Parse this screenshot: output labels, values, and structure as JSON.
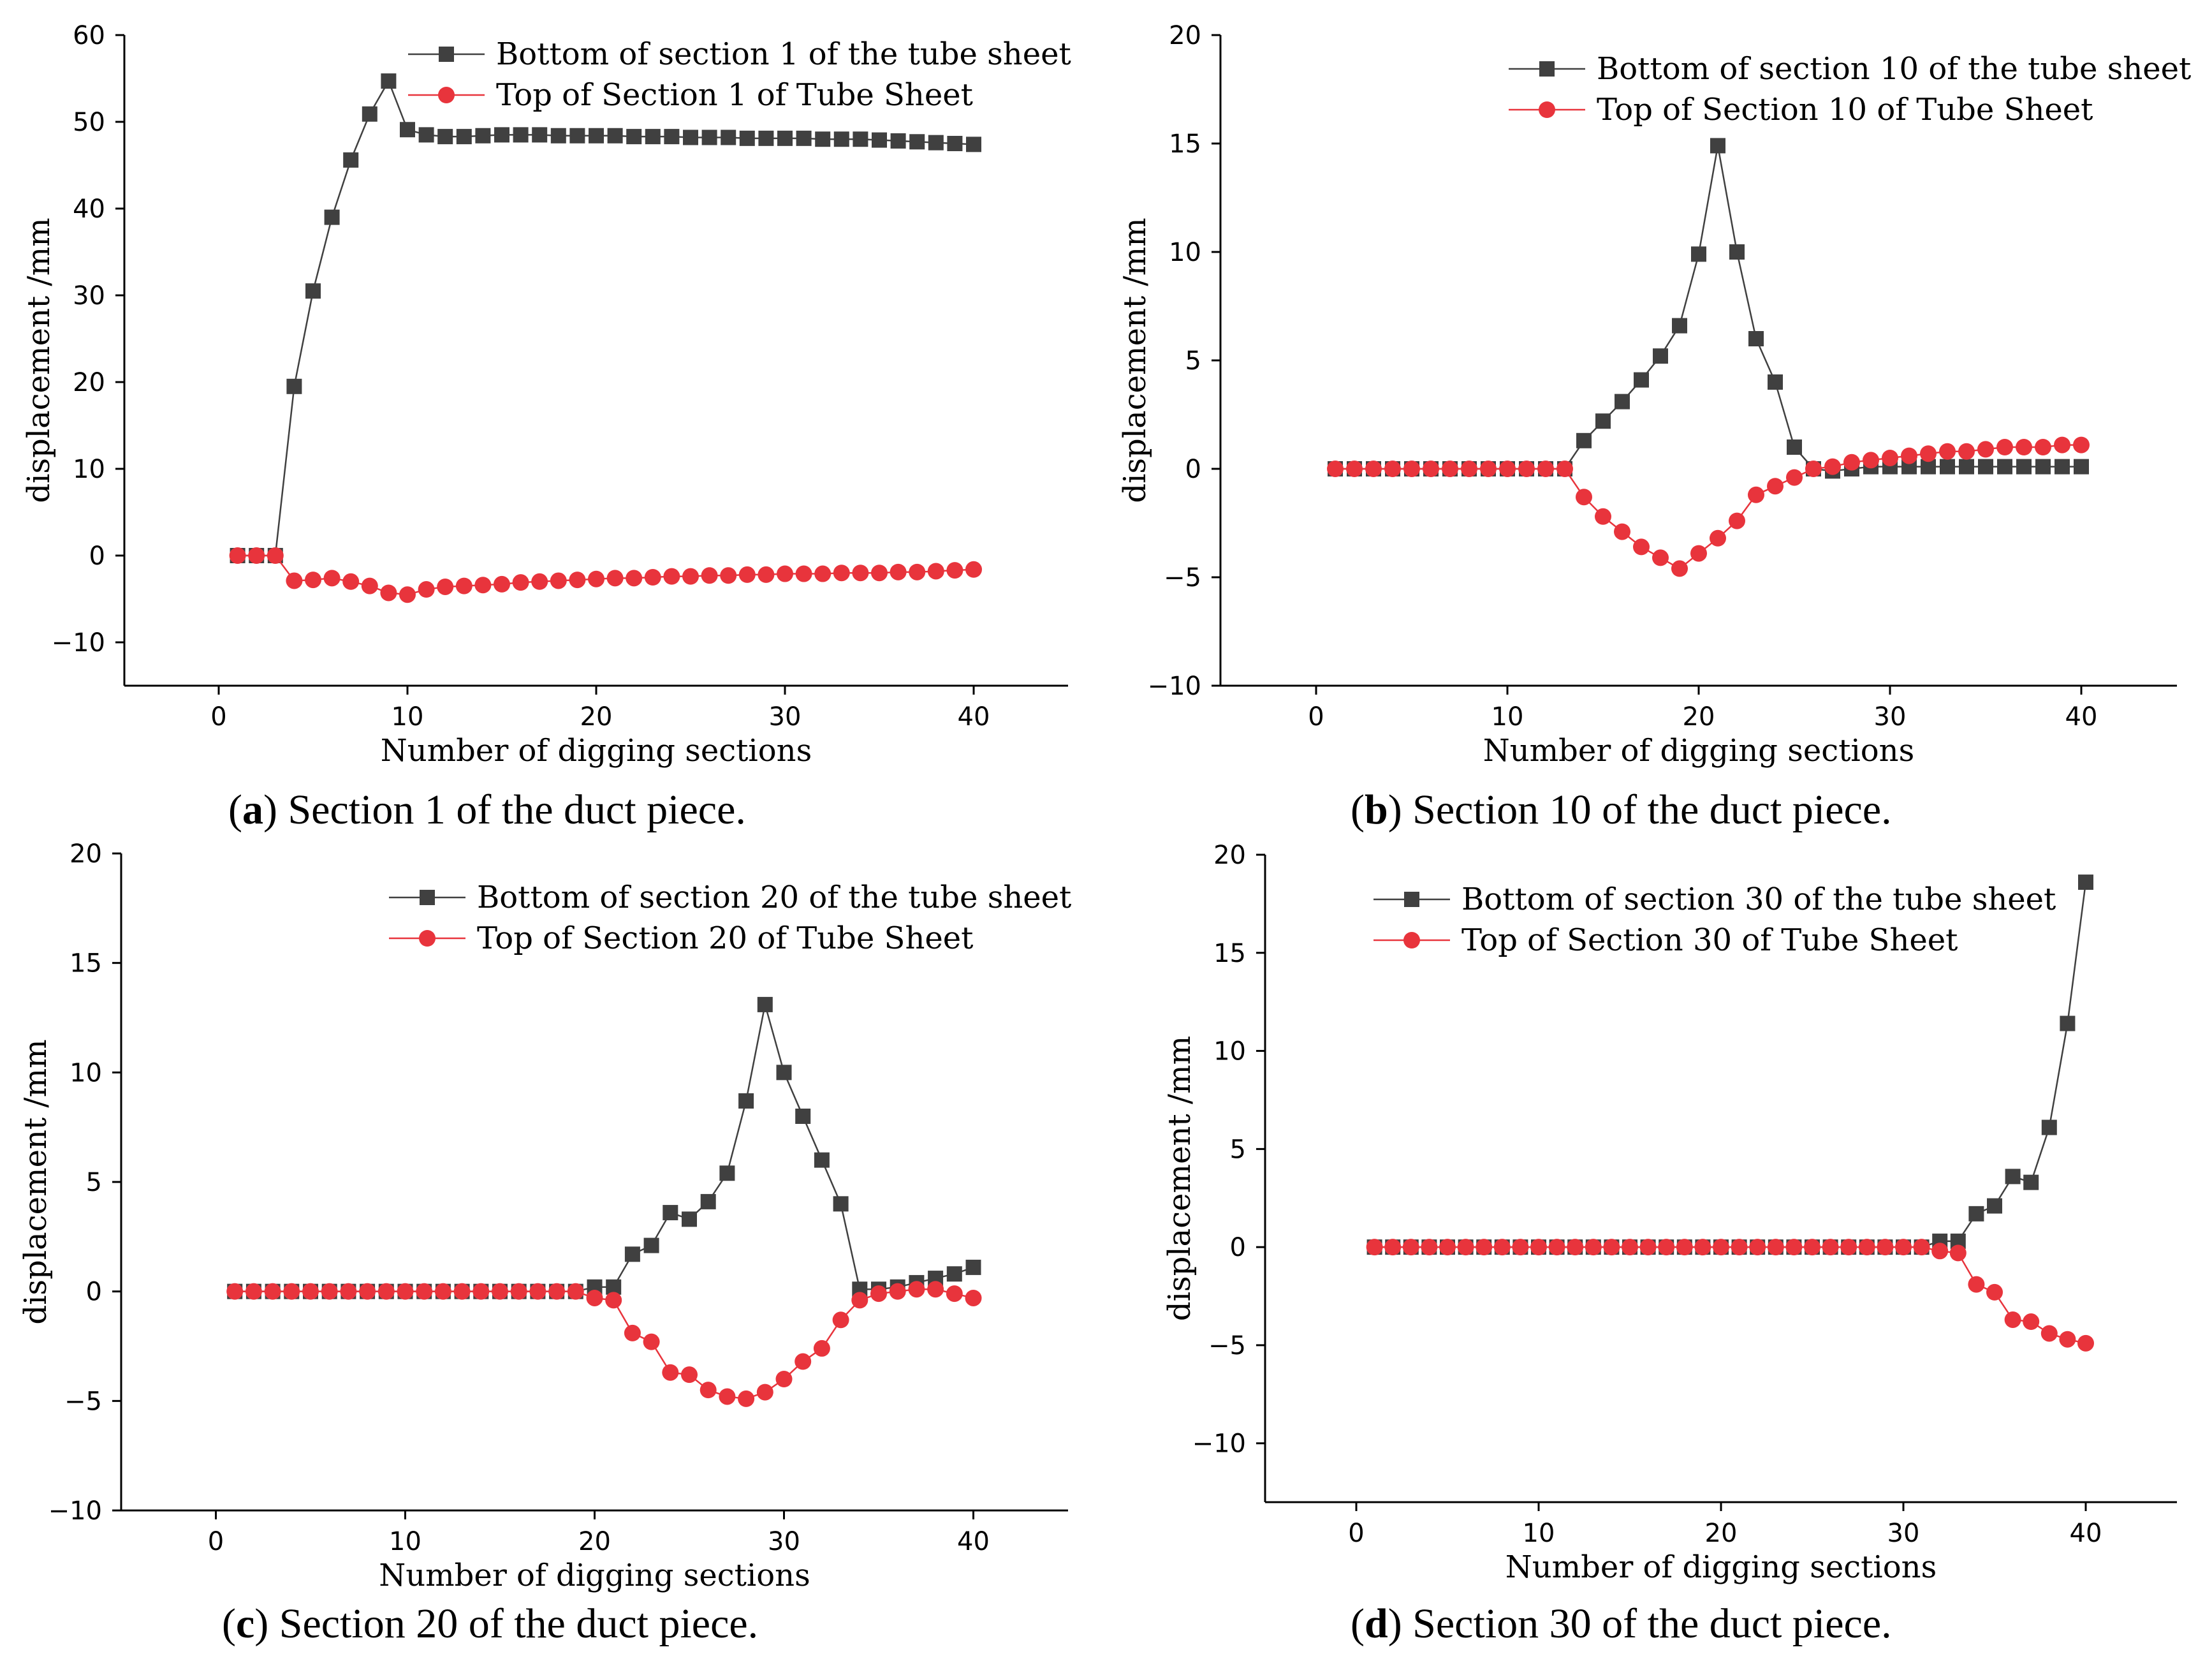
{
  "chart_data": [
    {
      "id": "a",
      "type": "line",
      "xlabel": "Number of digging sections",
      "ylabel": "displacement /mm",
      "xlim": [
        -5,
        45
      ],
      "ylim": [
        -15,
        60
      ],
      "xticks": [
        0,
        10,
        20,
        30,
        40
      ],
      "yticks": [
        -10,
        0,
        10,
        20,
        30,
        40,
        50,
        60
      ],
      "grid": false,
      "legend_position": "top-right",
      "caption": {
        "prefix": "(",
        "letter": "a",
        "suffix": ") Section 1 of the duct piece."
      },
      "x": [
        1,
        2,
        3,
        4,
        5,
        6,
        7,
        8,
        9,
        10,
        11,
        12,
        13,
        14,
        15,
        16,
        17,
        18,
        19,
        20,
        21,
        22,
        23,
        24,
        25,
        26,
        27,
        28,
        29,
        30,
        31,
        32,
        33,
        34,
        35,
        36,
        37,
        38,
        39,
        40
      ],
      "series": [
        {
          "name": "Bottom of section 1 of the tube sheet",
          "color": "#404040",
          "marker": "square",
          "values": [
            0,
            0,
            0,
            19.5,
            30.5,
            39,
            45.6,
            50.9,
            54.7,
            49.1,
            48.5,
            48.3,
            48.3,
            48.4,
            48.5,
            48.5,
            48.5,
            48.4,
            48.4,
            48.4,
            48.4,
            48.3,
            48.3,
            48.3,
            48.2,
            48.2,
            48.2,
            48.1,
            48.1,
            48.1,
            48.1,
            48.0,
            48.0,
            48.0,
            47.9,
            47.8,
            47.7,
            47.6,
            47.5,
            47.4
          ]
        },
        {
          "name": "Top of Section 1 of Tube Sheet",
          "color": "#e8343c",
          "marker": "circle",
          "values": [
            0,
            0,
            0,
            -2.9,
            -2.8,
            -2.6,
            -3.0,
            -3.5,
            -4.3,
            -4.5,
            -3.9,
            -3.6,
            -3.5,
            -3.4,
            -3.3,
            -3.1,
            -3.0,
            -2.9,
            -2.8,
            -2.7,
            -2.6,
            -2.6,
            -2.5,
            -2.4,
            -2.4,
            -2.3,
            -2.3,
            -2.2,
            -2.2,
            -2.1,
            -2.1,
            -2.1,
            -2.0,
            -2.0,
            -2.0,
            -1.9,
            -1.9,
            -1.8,
            -1.7,
            -1.6
          ]
        }
      ]
    },
    {
      "id": "b",
      "type": "line",
      "xlabel": "Number of digging sections",
      "ylabel": "displacement /mm",
      "xlim": [
        -5,
        45
      ],
      "ylim": [
        -10,
        20
      ],
      "xticks": [
        0,
        10,
        20,
        30,
        40
      ],
      "yticks": [
        -10,
        -5,
        0,
        5,
        10,
        15,
        20
      ],
      "grid": false,
      "legend_position": "top-right",
      "caption": {
        "prefix": "(",
        "letter": "b",
        "suffix": ") Section 10 of the duct piece."
      },
      "x": [
        1,
        2,
        3,
        4,
        5,
        6,
        7,
        8,
        9,
        10,
        11,
        12,
        13,
        14,
        15,
        16,
        17,
        18,
        19,
        20,
        21,
        22,
        23,
        24,
        25,
        26,
        27,
        28,
        29,
        30,
        31,
        32,
        33,
        34,
        35,
        36,
        37,
        38,
        39,
        40
      ],
      "series": [
        {
          "name": "Bottom of section 10 of the tube sheet",
          "color": "#404040",
          "marker": "square",
          "values": [
            0,
            0,
            0,
            0,
            0,
            0,
            0,
            0,
            0,
            0,
            0,
            0,
            0,
            1.3,
            2.2,
            3.1,
            4.1,
            5.2,
            6.6,
            9.9,
            14.9,
            10.0,
            6.0,
            4.0,
            1.0,
            0,
            -0.1,
            0,
            0.1,
            0.1,
            0.1,
            0.1,
            0.1,
            0.1,
            0.1,
            0.1,
            0.1,
            0.1,
            0.1,
            0.1
          ]
        },
        {
          "name": "Top of Section 10 of Tube Sheet",
          "color": "#e8343c",
          "marker": "circle",
          "values": [
            0,
            0,
            0,
            0,
            0,
            0,
            0,
            0,
            0,
            0,
            0,
            0,
            0,
            -1.3,
            -2.2,
            -2.9,
            -3.6,
            -4.1,
            -4.6,
            -3.9,
            -3.2,
            -2.4,
            -1.2,
            -0.8,
            -0.4,
            0,
            0.1,
            0.3,
            0.4,
            0.5,
            0.6,
            0.7,
            0.8,
            0.8,
            0.9,
            1.0,
            1.0,
            1.0,
            1.1,
            1.1
          ]
        }
      ]
    },
    {
      "id": "c",
      "type": "line",
      "xlabel": "Number of digging sections",
      "ylabel": "displacement /mm",
      "xlim": [
        -5,
        45
      ],
      "ylim": [
        -10,
        20
      ],
      "xticks": [
        0,
        10,
        20,
        30,
        40
      ],
      "yticks": [
        -10,
        -5,
        0,
        5,
        10,
        15,
        20
      ],
      "grid": false,
      "legend_position": "top-right",
      "caption": {
        "prefix": "(",
        "letter": "c",
        "suffix": ") Section 20 of the duct piece."
      },
      "x": [
        1,
        2,
        3,
        4,
        5,
        6,
        7,
        8,
        9,
        10,
        11,
        12,
        13,
        14,
        15,
        16,
        17,
        18,
        19,
        20,
        21,
        22,
        23,
        24,
        25,
        26,
        27,
        28,
        29,
        30,
        31,
        32,
        33,
        34,
        35,
        36,
        37,
        38,
        39,
        40
      ],
      "series": [
        {
          "name": "Bottom of section 20 of the tube sheet",
          "color": "#404040",
          "marker": "square",
          "values": [
            0,
            0,
            0,
            0,
            0,
            0,
            0,
            0,
            0,
            0,
            0,
            0,
            0,
            0,
            0,
            0,
            0,
            0,
            0,
            0.2,
            0.2,
            1.7,
            2.1,
            3.6,
            3.3,
            4.1,
            5.4,
            8.7,
            13.1,
            10.0,
            8.0,
            6.0,
            4.0,
            0.1,
            0.1,
            0.2,
            0.4,
            0.6,
            0.8,
            1.1
          ]
        },
        {
          "name": "Top of Section 20 of Tube Sheet",
          "color": "#e8343c",
          "marker": "circle",
          "values": [
            0,
            0,
            0,
            0,
            0,
            0,
            0,
            0,
            0,
            0,
            0,
            0,
            0,
            0,
            0,
            0,
            0,
            0,
            0,
            -0.3,
            -0.4,
            -1.9,
            -2.3,
            -3.7,
            -3.8,
            -4.5,
            -4.8,
            -4.9,
            -4.6,
            -4.0,
            -3.2,
            -2.6,
            -1.3,
            -0.4,
            -0.1,
            0,
            0.1,
            0.1,
            -0.1,
            -0.3
          ]
        }
      ]
    },
    {
      "id": "d",
      "type": "line",
      "xlabel": "Number of digging sections",
      "ylabel": "displacement /mm",
      "xlim": [
        -5,
        45
      ],
      "ylim": [
        -13,
        20
      ],
      "xticks": [
        0,
        10,
        20,
        30,
        40
      ],
      "yticks": [
        -10,
        -5,
        0,
        5,
        10,
        15,
        20
      ],
      "grid": false,
      "legend_position": "top-left",
      "caption": {
        "prefix": "(",
        "letter": "d",
        "suffix": ") Section 30 of the duct piece."
      },
      "x": [
        1,
        2,
        3,
        4,
        5,
        6,
        7,
        8,
        9,
        10,
        11,
        12,
        13,
        14,
        15,
        16,
        17,
        18,
        19,
        20,
        21,
        22,
        23,
        24,
        25,
        26,
        27,
        28,
        29,
        30,
        31,
        32,
        33,
        34,
        35,
        36,
        37,
        38,
        39,
        40
      ],
      "series": [
        {
          "name": "Bottom of section 30 of the tube sheet",
          "color": "#404040",
          "marker": "square",
          "values": [
            0,
            0,
            0,
            0,
            0,
            0,
            0,
            0,
            0,
            0,
            0,
            0,
            0,
            0,
            0,
            0,
            0,
            0,
            0,
            0,
            0,
            0,
            0,
            0,
            0,
            0,
            0,
            0,
            0,
            0,
            0,
            0.3,
            0.3,
            1.7,
            2.1,
            3.6,
            3.3,
            6.1,
            11.4,
            18.6
          ]
        },
        {
          "name": "Top of Section 30 of Tube Sheet",
          "color": "#e8343c",
          "marker": "circle",
          "values": [
            0,
            0,
            0,
            0,
            0,
            0,
            0,
            0,
            0,
            0,
            0,
            0,
            0,
            0,
            0,
            0,
            0,
            0,
            0,
            0,
            0,
            0,
            0,
            0,
            0,
            0,
            0,
            0,
            0,
            0,
            0,
            -0.2,
            -0.3,
            -1.9,
            -2.3,
            -3.7,
            -3.8,
            -4.4,
            -4.7,
            -4.9
          ]
        }
      ]
    }
  ]
}
